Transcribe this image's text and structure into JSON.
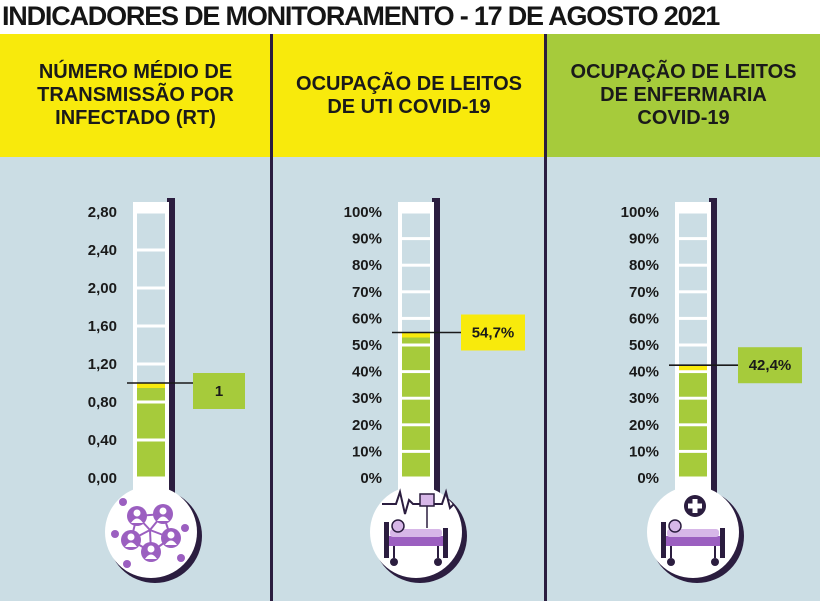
{
  "page": {
    "title": "INDICADORES DE MONITORAMENTO - 17 DE AGOSTO 2021"
  },
  "colors": {
    "yellow": "#f8ea0c",
    "green": "#a6cb3b",
    "background": "#cbdde4",
    "dark": "#2b1d3f",
    "icon_purple": "#9b5fc0",
    "icon_light": "#d7b7e8"
  },
  "panels": [
    {
      "header": "NÚMERO MÉDIO DE TRANSMISSÃO POR INFECTADO (RT)",
      "header_color": "#f8ea0c",
      "icon": "people-network-icon"
    },
    {
      "header": "OCUPAÇÃO DE LEITOS DE UTI COVID-19",
      "header_color": "#f8ea0c",
      "icon": "icu-bed-heartbeat-icon"
    },
    {
      "header": "OCUPAÇÃO DE LEITOS DE ENFERMARIA COVID-19",
      "header_color": "#a6cb3b",
      "icon": "hospital-bed-cross-icon"
    }
  ],
  "chart_data": [
    {
      "type": "bar",
      "value": 1,
      "value_label": "1",
      "ylim": [
        0,
        2.8
      ],
      "ticks": [
        0,
        0.4,
        0.8,
        1.2,
        1.6,
        2.0,
        2.4,
        2.8
      ],
      "tick_labels": [
        "0,00",
        "0,40",
        "0,80",
        "1,20",
        "1,60",
        "2,00",
        "2,40",
        "2,80"
      ],
      "label_color": "#a6cb3b"
    },
    {
      "type": "bar",
      "value": 54.7,
      "value_label": "54,7%",
      "ylim": [
        0,
        100
      ],
      "ticks": [
        0,
        10,
        20,
        30,
        40,
        50,
        60,
        70,
        80,
        90,
        100
      ],
      "tick_labels": [
        "0%",
        "10%",
        "20%",
        "30%",
        "40%",
        "50%",
        "60%",
        "70%",
        "80%",
        "90%",
        "100%"
      ],
      "label_color": "#f8ea0c"
    },
    {
      "type": "bar",
      "value": 42.4,
      "value_label": "42,4%",
      "ylim": [
        0,
        100
      ],
      "ticks": [
        0,
        10,
        20,
        30,
        40,
        50,
        60,
        70,
        80,
        90,
        100
      ],
      "tick_labels": [
        "0%",
        "10%",
        "20%",
        "30%",
        "40%",
        "50%",
        "60%",
        "70%",
        "80%",
        "90%",
        "100%"
      ],
      "label_color": "#a6cb3b"
    }
  ]
}
